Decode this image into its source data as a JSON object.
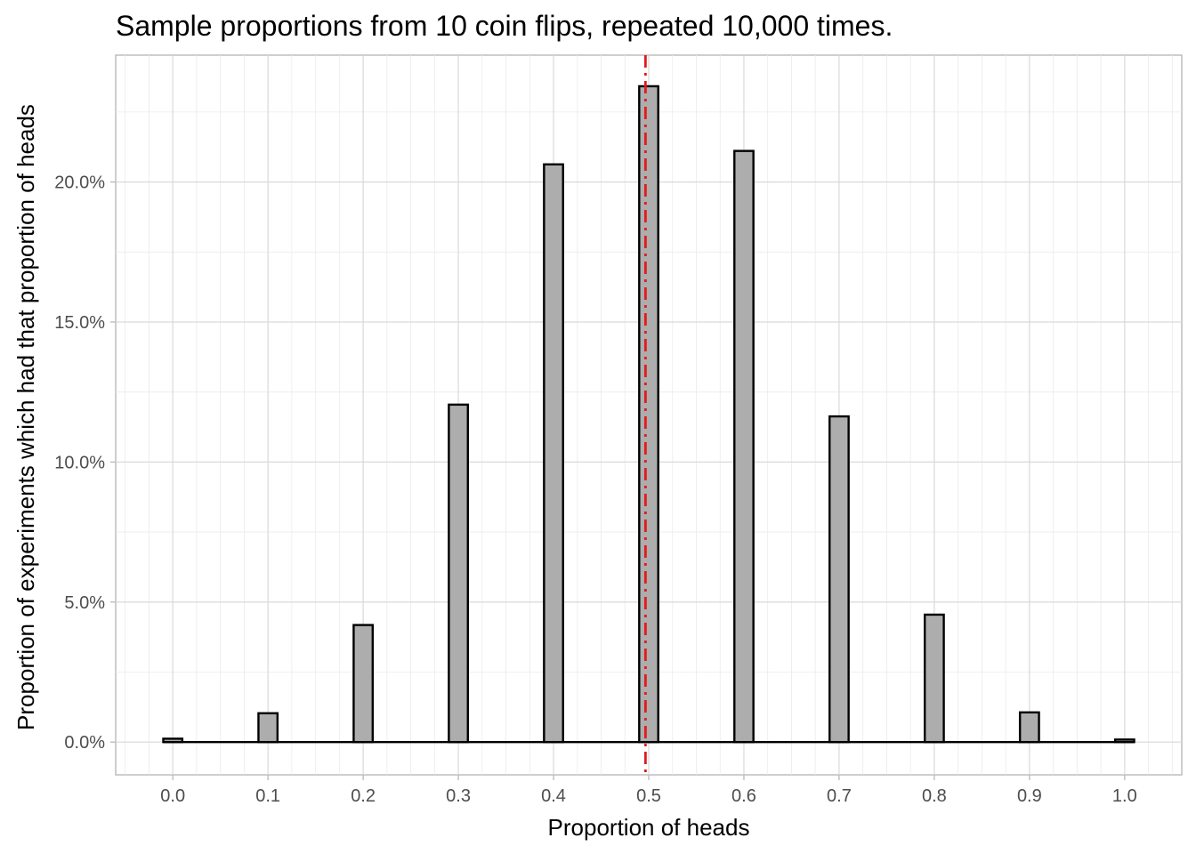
{
  "chart_data": {
    "type": "bar",
    "title": "Sample proportions from 10 coin flips, repeated 10,000 times.",
    "xlabel": "Proportion of heads",
    "ylabel": "Proportion of experiments which had that proportion of heads",
    "x": [
      0.0,
      0.1,
      0.2,
      0.3,
      0.4,
      0.5,
      0.6,
      0.7,
      0.8,
      0.9,
      1.0
    ],
    "values": [
      0.0012,
      0.0103,
      0.0418,
      0.1205,
      0.2063,
      0.2342,
      0.2111,
      0.1163,
      0.0455,
      0.0106,
      0.0009
    ],
    "xlim": [
      -0.06,
      1.06
    ],
    "ylim": [
      -0.0117,
      0.2453
    ],
    "x_ticks": [
      0.0,
      0.1,
      0.2,
      0.3,
      0.4,
      0.5,
      0.6,
      0.7,
      0.8,
      0.9,
      1.0
    ],
    "x_tick_labels": [
      "0.0",
      "0.1",
      "0.2",
      "0.3",
      "0.4",
      "0.5",
      "0.6",
      "0.7",
      "0.8",
      "0.9",
      "1.0"
    ],
    "y_ticks": [
      0.0,
      0.05,
      0.1,
      0.15,
      0.2
    ],
    "y_tick_labels": [
      "0.0%",
      "5.0%",
      "10.0%",
      "15.0%",
      "20.0%"
    ],
    "reference_line": {
      "x": 0.4966,
      "style": "dashdot",
      "color": "#e31a1c"
    },
    "bar_fill": "#adadad",
    "bar_outline": "#000000",
    "grid": true
  }
}
